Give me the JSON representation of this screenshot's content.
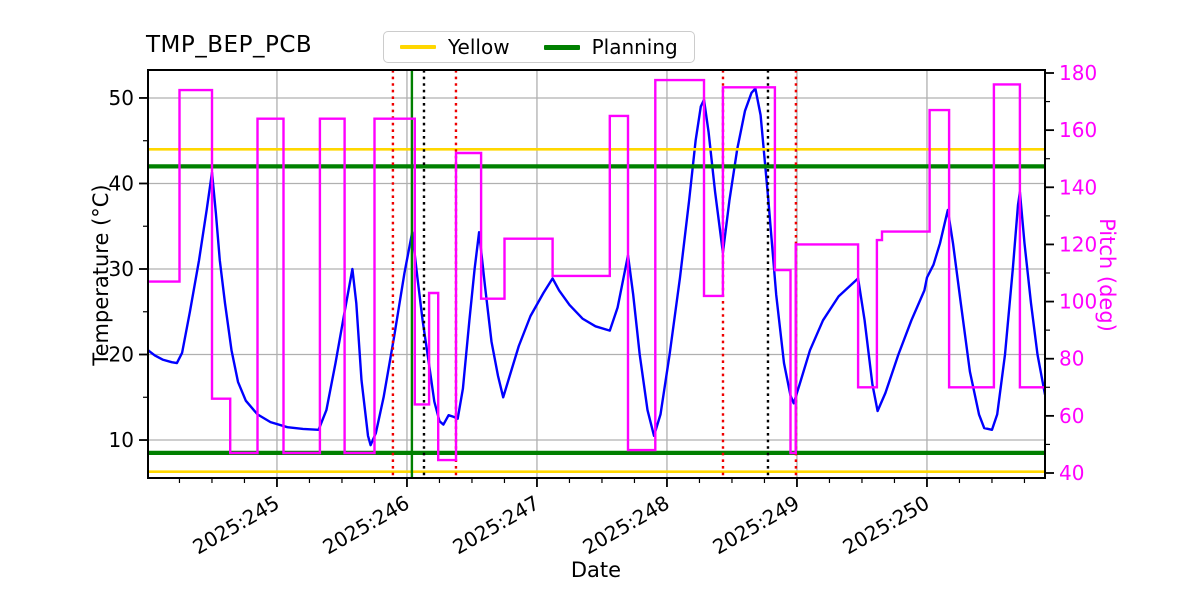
{
  "title": "TMP_BEP_PCB",
  "legend": {
    "items": [
      {
        "label": "Yellow",
        "color": "#ffd700"
      },
      {
        "label": "Planning",
        "color": "#008000"
      }
    ]
  },
  "colors": {
    "temperature_line": "#0000ff",
    "pitch_line": "#ff00ff",
    "yellow_limit": "#ffd700",
    "planning_limit": "#008000",
    "event_red": "#ee0000",
    "event_black": "#000000",
    "event_green": "#008000",
    "grid": "#b0b0b0",
    "right_axis_text": "#ff00ff"
  },
  "chart_data": {
    "type": "line",
    "title": "TMP_BEP_PCB",
    "x_axis": {
      "label": "Date",
      "range": [
        244.008,
        250.908
      ],
      "major_ticks": [
        245,
        246,
        247,
        248,
        249,
        250
      ],
      "tick_labels": [
        "2025:245",
        "2025:246",
        "2025:247",
        "2025:248",
        "2025:249",
        "2025:250"
      ],
      "minor_tick_step": 0.25,
      "grid": true
    },
    "y_left": {
      "label": "Temperature (°C)",
      "range": [
        5.56,
        53.27
      ],
      "major_ticks": [
        10,
        20,
        30,
        40,
        50
      ],
      "minor_tick_step": 5,
      "grid": true
    },
    "y_right": {
      "label": "Pitch (deg)",
      "range": [
        38.25,
        181.05
      ],
      "major_ticks": [
        40,
        60,
        80,
        100,
        120,
        140,
        160,
        180
      ],
      "minor_tick_step": 10,
      "grid": false
    },
    "series": [
      {
        "name": "temperature",
        "axis": "left",
        "color": "#0000ff",
        "points": [
          [
            244.008,
            20.5
          ],
          [
            244.06,
            19.9
          ],
          [
            244.12,
            19.4
          ],
          [
            244.19,
            19.1
          ],
          [
            244.23,
            19.0
          ],
          [
            244.27,
            20.2
          ],
          [
            244.33,
            25
          ],
          [
            244.4,
            31
          ],
          [
            244.46,
            37
          ],
          [
            244.5,
            41.3
          ],
          [
            244.53,
            36.5
          ],
          [
            244.56,
            31
          ],
          [
            244.6,
            26
          ],
          [
            244.65,
            20.5
          ],
          [
            244.7,
            16.8
          ],
          [
            244.76,
            14.6
          ],
          [
            244.85,
            13.0
          ],
          [
            244.95,
            12.1
          ],
          [
            245.08,
            11.5
          ],
          [
            245.2,
            11.3
          ],
          [
            245.32,
            11.2
          ],
          [
            245.38,
            13.5
          ],
          [
            245.45,
            19
          ],
          [
            245.52,
            25
          ],
          [
            245.58,
            30
          ],
          [
            245.61,
            26
          ],
          [
            245.65,
            17
          ],
          [
            245.7,
            10.5
          ],
          [
            245.72,
            9.4
          ],
          [
            245.76,
            10.8
          ],
          [
            245.82,
            15
          ],
          [
            245.9,
            22
          ],
          [
            245.98,
            29.5
          ],
          [
            246.04,
            34.3
          ],
          [
            246.08,
            29
          ],
          [
            246.12,
            24
          ],
          [
            246.17,
            18.8
          ],
          [
            246.21,
            14.5
          ],
          [
            246.25,
            12.2
          ],
          [
            246.28,
            11.8
          ],
          [
            246.32,
            12.9
          ],
          [
            246.36,
            12.7
          ],
          [
            246.39,
            12.5
          ],
          [
            246.43,
            16
          ],
          [
            246.48,
            24
          ],
          [
            246.52,
            30
          ],
          [
            246.555,
            34.3
          ],
          [
            246.6,
            28
          ],
          [
            246.65,
            21.5
          ],
          [
            246.7,
            17.5
          ],
          [
            246.74,
            15.0
          ],
          [
            246.79,
            17.5
          ],
          [
            246.86,
            21
          ],
          [
            246.95,
            24.5
          ],
          [
            247.05,
            27.2
          ],
          [
            247.12,
            28.9
          ],
          [
            247.17,
            27.5
          ],
          [
            247.25,
            25.8
          ],
          [
            247.35,
            24.2
          ],
          [
            247.45,
            23.3
          ],
          [
            247.56,
            22.8
          ],
          [
            247.62,
            25.5
          ],
          [
            247.7,
            31.6
          ],
          [
            247.74,
            27
          ],
          [
            247.79,
            20
          ],
          [
            247.85,
            13.5
          ],
          [
            247.9,
            10.5
          ],
          [
            247.95,
            13
          ],
          [
            248.02,
            20
          ],
          [
            248.1,
            29
          ],
          [
            248.17,
            38
          ],
          [
            248.22,
            45
          ],
          [
            248.26,
            49
          ],
          [
            248.285,
            49.8
          ],
          [
            248.32,
            46
          ],
          [
            248.37,
            39
          ],
          [
            248.43,
            31.9
          ],
          [
            248.48,
            38
          ],
          [
            248.54,
            44
          ],
          [
            248.6,
            48.5
          ],
          [
            248.65,
            50.6
          ],
          [
            248.68,
            51.1
          ],
          [
            248.72,
            48
          ],
          [
            248.78,
            38
          ],
          [
            248.84,
            27
          ],
          [
            248.9,
            19
          ],
          [
            248.95,
            15.2
          ],
          [
            248.975,
            14.3
          ],
          [
            249.02,
            16.5
          ],
          [
            249.1,
            20.5
          ],
          [
            249.2,
            24
          ],
          [
            249.32,
            26.8
          ],
          [
            249.42,
            28.2
          ],
          [
            249.47,
            28.9
          ],
          [
            249.52,
            24
          ],
          [
            249.58,
            16.5
          ],
          [
            249.62,
            13.4
          ],
          [
            249.68,
            15.5
          ],
          [
            249.78,
            20
          ],
          [
            249.88,
            24
          ],
          [
            249.98,
            27.5
          ],
          [
            250.0,
            29
          ],
          [
            250.05,
            30.5
          ],
          [
            250.1,
            33
          ],
          [
            250.16,
            36.9
          ],
          [
            250.2,
            33
          ],
          [
            250.26,
            26
          ],
          [
            250.33,
            18
          ],
          [
            250.4,
            13
          ],
          [
            250.44,
            11.4
          ],
          [
            250.5,
            11.2
          ],
          [
            250.54,
            13
          ],
          [
            250.6,
            20
          ],
          [
            250.66,
            30
          ],
          [
            250.7,
            37.5
          ],
          [
            250.715,
            39
          ],
          [
            250.75,
            33
          ],
          [
            250.8,
            26
          ],
          [
            250.85,
            20
          ],
          [
            250.908,
            15.3
          ]
        ]
      },
      {
        "name": "pitch",
        "axis": "right",
        "color": "#ff00ff",
        "points": [
          [
            244.008,
            107
          ],
          [
            244.25,
            107
          ],
          [
            244.25,
            174
          ],
          [
            244.5,
            174
          ],
          [
            244.5,
            66
          ],
          [
            244.64,
            66
          ],
          [
            244.64,
            47
          ],
          [
            244.85,
            47
          ],
          [
            244.85,
            164
          ],
          [
            245.05,
            164
          ],
          [
            245.05,
            47
          ],
          [
            245.33,
            47
          ],
          [
            245.33,
            164
          ],
          [
            245.52,
            164
          ],
          [
            245.52,
            47
          ],
          [
            245.75,
            47
          ],
          [
            245.75,
            164
          ],
          [
            246.06,
            164
          ],
          [
            246.06,
            64
          ],
          [
            246.17,
            64
          ],
          [
            246.17,
            103
          ],
          [
            246.24,
            103
          ],
          [
            246.24,
            44.5
          ],
          [
            246.377,
            44.5
          ],
          [
            246.377,
            152
          ],
          [
            246.57,
            152
          ],
          [
            246.57,
            101
          ],
          [
            246.75,
            101
          ],
          [
            246.75,
            122
          ],
          [
            247.12,
            122
          ],
          [
            247.12,
            109
          ],
          [
            247.56,
            109
          ],
          [
            247.56,
            165
          ],
          [
            247.7,
            165
          ],
          [
            247.7,
            48
          ],
          [
            247.91,
            48
          ],
          [
            247.91,
            177.5
          ],
          [
            248.285,
            177.5
          ],
          [
            248.285,
            102
          ],
          [
            248.43,
            102
          ],
          [
            248.43,
            175
          ],
          [
            248.83,
            175
          ],
          [
            248.83,
            111
          ],
          [
            248.95,
            111
          ],
          [
            248.95,
            47
          ],
          [
            248.99,
            47
          ],
          [
            248.99,
            120
          ],
          [
            249.47,
            120
          ],
          [
            249.47,
            70
          ],
          [
            249.615,
            70
          ],
          [
            249.615,
            121.5
          ],
          [
            249.654,
            121.5
          ],
          [
            249.654,
            124.5
          ],
          [
            250.02,
            124.5
          ],
          [
            250.02,
            167
          ],
          [
            250.17,
            167
          ],
          [
            250.17,
            70
          ],
          [
            250.515,
            70
          ],
          [
            250.515,
            176
          ],
          [
            250.715,
            176
          ],
          [
            250.715,
            70
          ],
          [
            250.908,
            70
          ]
        ]
      }
    ],
    "reference_lines": [
      {
        "name": "Yellow",
        "axis": "left",
        "color": "#ffd700",
        "width": 2.6,
        "values": [
          44,
          6.3
        ]
      },
      {
        "name": "Planning",
        "axis": "left",
        "color": "#008000",
        "width": 4.2,
        "values": [
          42,
          8.5
        ]
      }
    ],
    "event_lines": [
      {
        "day": 245.892,
        "color": "#ee0000",
        "style": "dotted"
      },
      {
        "day": 246.038,
        "color": "#008000",
        "style": "solid"
      },
      {
        "day": 246.131,
        "color": "#000000",
        "style": "dotted"
      },
      {
        "day": 246.377,
        "color": "#ee0000",
        "style": "dotted"
      },
      {
        "day": 248.431,
        "color": "#ee0000",
        "style": "dotted"
      },
      {
        "day": 248.777,
        "color": "#000000",
        "style": "dotted"
      },
      {
        "day": 248.992,
        "color": "#ee0000",
        "style": "dotted"
      }
    ],
    "legend_entries": [
      "Yellow",
      "Planning"
    ],
    "legend_position": "top-center"
  }
}
